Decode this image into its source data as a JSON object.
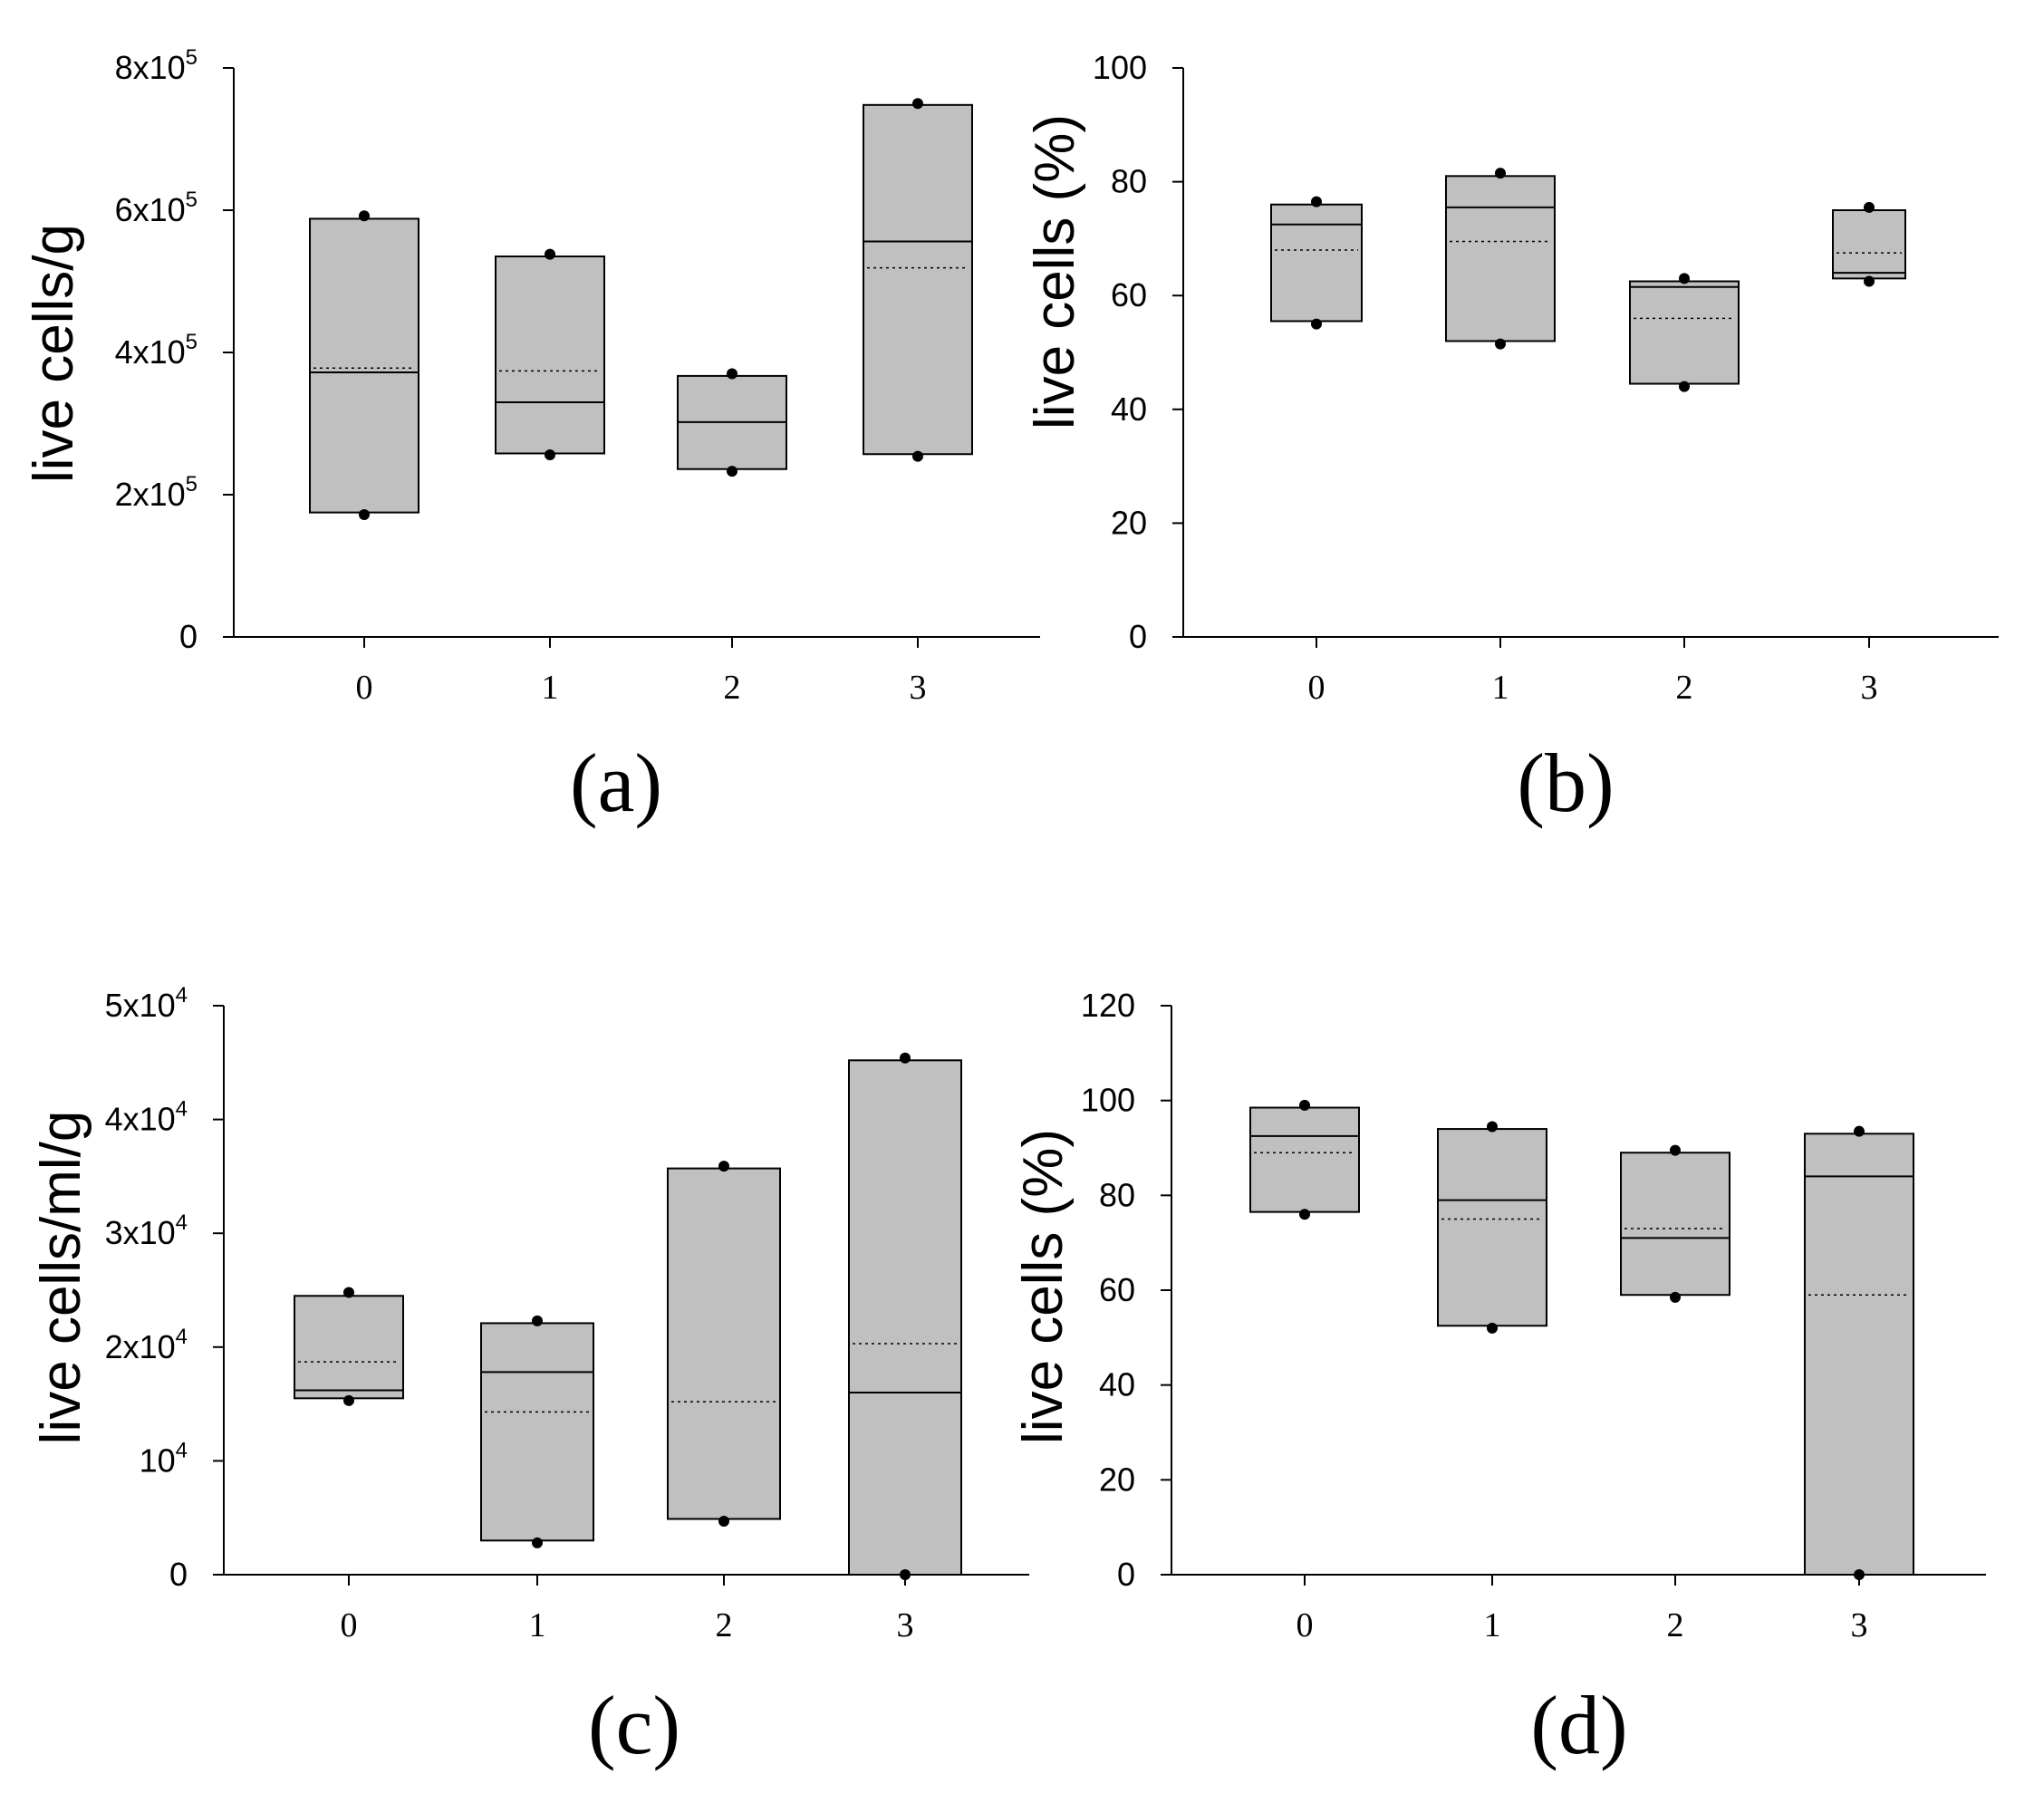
{
  "chart_data": [
    {
      "type": "box",
      "panel_label": "(a)",
      "ylabel": "live cells/g",
      "ylim": [
        0,
        800000
      ],
      "yticks": [
        {
          "value": 0,
          "base": "0",
          "sup": ""
        },
        {
          "value": 200000,
          "base": "2x10",
          "sup": "5"
        },
        {
          "value": 400000,
          "base": "4x10",
          "sup": "5"
        },
        {
          "value": 600000,
          "base": "6x10",
          "sup": "5"
        },
        {
          "value": 800000,
          "base": "8x10",
          "sup": "5"
        }
      ],
      "categories": [
        "0",
        "1",
        "2",
        "3"
      ],
      "boxes": [
        {
          "q1": 175000,
          "q3": 588000,
          "median": 372000,
          "mean": 378000,
          "min": 172000,
          "max": 592000
        },
        {
          "q1": 258000,
          "q3": 535000,
          "median": 330000,
          "mean": 374000,
          "min": 256000,
          "max": 538000
        },
        {
          "q1": 236000,
          "q3": 367000,
          "median": 302000,
          "mean": null,
          "min": 233000,
          "max": 370000
        },
        {
          "q1": 257000,
          "q3": 748000,
          "median": 556000,
          "mean": 519000,
          "min": 254000,
          "max": 750000
        }
      ]
    },
    {
      "type": "box",
      "panel_label": "(b)",
      "ylabel": "live cells (%)",
      "ylim": [
        0,
        100
      ],
      "yticks": [
        {
          "value": 0,
          "base": "0",
          "sup": ""
        },
        {
          "value": 20,
          "base": "20",
          "sup": ""
        },
        {
          "value": 40,
          "base": "40",
          "sup": ""
        },
        {
          "value": 60,
          "base": "60",
          "sup": ""
        },
        {
          "value": 80,
          "base": "80",
          "sup": ""
        },
        {
          "value": 100,
          "base": "100",
          "sup": ""
        }
      ],
      "categories": [
        "0",
        "1",
        "2",
        "3"
      ],
      "boxes": [
        {
          "q1": 55.5,
          "q3": 76,
          "median": 72.5,
          "mean": 68,
          "min": 55,
          "max": 76.5
        },
        {
          "q1": 52,
          "q3": 81,
          "median": 75.5,
          "mean": 69.5,
          "min": 51.5,
          "max": 81.5
        },
        {
          "q1": 44.5,
          "q3": 62.5,
          "median": 61.5,
          "mean": 56,
          "min": 44,
          "max": 63
        },
        {
          "q1": 63,
          "q3": 75,
          "median": 64,
          "mean": 67.5,
          "min": 62.5,
          "max": 75.5
        }
      ]
    },
    {
      "type": "box",
      "panel_label": "(c)",
      "ylabel": "live cells/ml/g",
      "ylim": [
        0,
        50000
      ],
      "yticks": [
        {
          "value": 0,
          "base": "0",
          "sup": ""
        },
        {
          "value": 10000,
          "base": "10",
          "sup": "4"
        },
        {
          "value": 20000,
          "base": "2x10",
          "sup": "4"
        },
        {
          "value": 30000,
          "base": "3x10",
          "sup": "4"
        },
        {
          "value": 40000,
          "base": "4x10",
          "sup": "4"
        },
        {
          "value": 50000,
          "base": "5x10",
          "sup": "4"
        }
      ],
      "categories": [
        "0",
        "1",
        "2",
        "3"
      ],
      "boxes": [
        {
          "q1": 15500,
          "q3": 24500,
          "median": 16200,
          "mean": 18700,
          "min": 15300,
          "max": 24800
        },
        {
          "q1": 3000,
          "q3": 22100,
          "median": 17800,
          "mean": 14300,
          "min": 2800,
          "max": 22300
        },
        {
          "q1": 4900,
          "q3": 35700,
          "median": 4900,
          "mean": 15200,
          "min": 4700,
          "max": 35900
        },
        {
          "q1": 0,
          "q3": 45200,
          "median": 16000,
          "mean": 20300,
          "min": 0,
          "max": 45400
        }
      ]
    },
    {
      "type": "box",
      "panel_label": "(d)",
      "ylabel": "live cells (%)",
      "ylim": [
        0,
        120
      ],
      "yticks": [
        {
          "value": 0,
          "base": "0",
          "sup": ""
        },
        {
          "value": 20,
          "base": "20",
          "sup": ""
        },
        {
          "value": 40,
          "base": "40",
          "sup": ""
        },
        {
          "value": 60,
          "base": "60",
          "sup": ""
        },
        {
          "value": 80,
          "base": "80",
          "sup": ""
        },
        {
          "value": 100,
          "base": "100",
          "sup": ""
        },
        {
          "value": 120,
          "base": "120",
          "sup": ""
        }
      ],
      "categories": [
        "0",
        "1",
        "2",
        "3"
      ],
      "boxes": [
        {
          "q1": 76.5,
          "q3": 98.5,
          "median": 92.5,
          "mean": 89,
          "min": 76,
          "max": 99
        },
        {
          "q1": 52.5,
          "q3": 94,
          "median": 79,
          "mean": 75,
          "min": 52,
          "max": 94.5
        },
        {
          "q1": 59,
          "q3": 89,
          "median": 71,
          "mean": 73,
          "min": 58.5,
          "max": 89.5
        },
        {
          "q1": 0,
          "q3": 93,
          "median": 84,
          "mean": 59,
          "min": 0,
          "max": 93.5
        }
      ]
    }
  ]
}
